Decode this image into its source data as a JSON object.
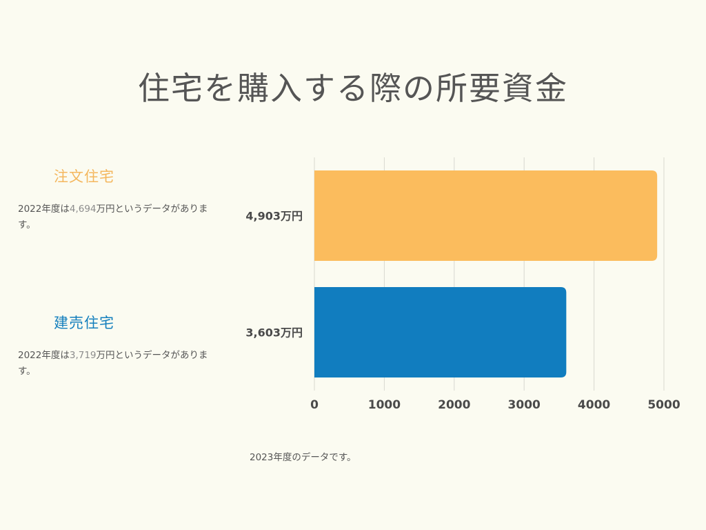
{
  "page": {
    "title": "住宅を購入する際の所要資金",
    "footnote": "2023年度のデータです。"
  },
  "legend": [
    {
      "name": "注文住宅",
      "color": "#f4b75e",
      "desc_prefix": "2022年度は",
      "desc_value": "4,694",
      "desc_suffix": "万円というデータがあります。"
    },
    {
      "name": "建売住宅",
      "color": "#147fbd",
      "desc_prefix": "2022年度は",
      "desc_value": "3,719",
      "desc_suffix": "万円というデータがあります。"
    }
  ],
  "chart_data": {
    "type": "bar",
    "orientation": "horizontal",
    "categories": [
      "注文住宅",
      "建売住宅"
    ],
    "values": [
      4903,
      3603
    ],
    "value_labels": [
      "4,903万円",
      "3,603万円"
    ],
    "colors": [
      "#fbbc5d",
      "#117dbf"
    ],
    "xlim": [
      0,
      5000
    ],
    "xticks": [
      0,
      1000,
      2000,
      3000,
      4000,
      5000
    ],
    "grid": true
  }
}
